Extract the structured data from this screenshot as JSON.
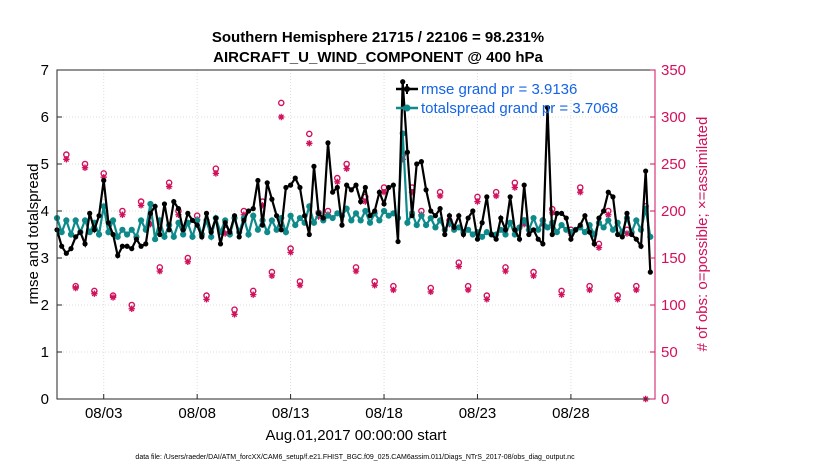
{
  "chart_data": {
    "type": "line",
    "title": "Southern Hemisphere 21715 / 22106 = 98.231%",
    "subtitle": "AIRCRAFT_U_WIND_COMPONENT @ 400 hPa",
    "xlabel": "Aug.01,2017 00:00:00 start",
    "ylabel": "rmse and totalspread",
    "ylabel_right": "# of obs: o=possible; ×=assimilated",
    "footnote": "data file: /Users/raeder/DAI/ATM_forcXX/CAM6_setup/f.e21.FHIST_BGC.f09_025.CAM6assim.011/Diags_NTrS_2017-08/obs_diag_output.nc",
    "xlim": [
      0.5,
      32.5
    ],
    "ylim": [
      0,
      7
    ],
    "ylim_right": [
      0,
      350
    ],
    "xticks": [
      3,
      8,
      13,
      18,
      23,
      28
    ],
    "xtick_labels": [
      "08/03",
      "08/08",
      "08/13",
      "08/18",
      "08/23",
      "08/28"
    ],
    "yticks": [
      0,
      1,
      2,
      3,
      4,
      5,
      6,
      7
    ],
    "ytick_labels": [
      "0",
      "1",
      "2",
      "3",
      "4",
      "5",
      "6",
      "7"
    ],
    "yticks_right": [
      0,
      50,
      100,
      150,
      200,
      250,
      300,
      350
    ],
    "ytick_labels_right": [
      "0",
      "50",
      "100",
      "150",
      "200",
      "250",
      "300",
      "350"
    ],
    "legend_position": "top-right",
    "series": [
      {
        "name": "rmse grand pr = 3.9136",
        "color": "#000000",
        "x": [
          0.5,
          0.75,
          1.0,
          1.25,
          1.5,
          1.75,
          2.0,
          2.25,
          2.5,
          2.75,
          3.0,
          3.25,
          3.5,
          3.75,
          4.0,
          4.25,
          4.5,
          4.75,
          5.0,
          5.25,
          5.5,
          5.75,
          6.0,
          6.25,
          6.5,
          6.75,
          7.0,
          7.25,
          7.5,
          7.75,
          8.0,
          8.25,
          8.5,
          8.75,
          9.0,
          9.25,
          9.5,
          9.75,
          10.0,
          10.25,
          10.5,
          10.75,
          11.0,
          11.25,
          11.5,
          11.75,
          12.0,
          12.25,
          12.5,
          12.75,
          13.0,
          13.25,
          13.5,
          13.75,
          14.0,
          14.25,
          14.5,
          14.75,
          15.0,
          15.25,
          15.5,
          15.75,
          16.0,
          16.25,
          16.5,
          16.75,
          17.0,
          17.25,
          17.5,
          17.75,
          18.0,
          18.25,
          18.5,
          18.75,
          19.0,
          19.25,
          19.5,
          19.75,
          20.0,
          20.25,
          20.5,
          20.75,
          21.0,
          21.25,
          21.5,
          21.75,
          22.0,
          22.25,
          22.5,
          22.75,
          23.0,
          23.25,
          23.5,
          23.75,
          24.0,
          24.25,
          24.5,
          24.75,
          25.0,
          25.25,
          25.5,
          25.75,
          26.0,
          26.25,
          26.5,
          26.75,
          27.0,
          27.25,
          27.5,
          27.75,
          28.0,
          28.25,
          28.5,
          28.75,
          29.0,
          29.25,
          29.5,
          29.75,
          30.0,
          30.25,
          30.5,
          30.75,
          31.0,
          31.25,
          31.5,
          31.75,
          32.0,
          32.25
        ],
        "values": [
          3.6,
          3.25,
          3.1,
          3.2,
          3.45,
          3.55,
          3.3,
          3.95,
          3.6,
          3.9,
          4.65,
          3.75,
          3.5,
          3.05,
          3.25,
          3.25,
          3.2,
          3.4,
          3.25,
          3.3,
          3.95,
          4.1,
          3.5,
          4.15,
          3.6,
          4.2,
          4.05,
          3.6,
          3.95,
          3.8,
          3.7,
          3.45,
          3.95,
          3.55,
          3.85,
          3.3,
          3.75,
          3.55,
          3.9,
          3.45,
          3.8,
          4.0,
          4.05,
          4.65,
          3.7,
          4.6,
          4.25,
          3.9,
          3.6,
          4.5,
          4.55,
          4.7,
          4.5,
          3.9,
          3.5,
          4.95,
          3.95,
          3.85,
          5.45,
          4.4,
          4.5,
          3.7,
          4.55,
          4.45,
          4.55,
          4.2,
          4.5,
          3.9,
          4.0,
          4.4,
          4.15,
          4.5,
          4.55,
          3.35,
          6.75,
          5.25,
          3.9,
          5.0,
          5.05,
          4.45,
          4.0,
          3.9,
          4.05,
          3.5,
          3.9,
          3.65,
          3.9,
          3.5,
          3.85,
          4.0,
          3.4,
          3.75,
          4.3,
          3.5,
          3.4,
          3.85,
          3.6,
          4.3,
          3.6,
          3.4,
          4.55,
          3.5,
          3.6,
          3.4,
          3.3,
          6.2,
          3.5,
          3.95,
          3.95,
          3.85,
          3.4,
          3.6,
          3.7,
          3.9,
          3.55,
          3.3,
          3.85,
          4.0,
          4.4,
          4.3,
          3.5,
          3.45,
          3.95,
          3.5,
          3.4,
          3.25,
          4.85,
          2.7
        ]
      },
      {
        "name": "totalspread grand pr = 3.7068",
        "color": "#0f8a8a",
        "x": [
          0.5,
          0.75,
          1.0,
          1.25,
          1.5,
          1.75,
          2.0,
          2.25,
          2.5,
          2.75,
          3.0,
          3.25,
          3.5,
          3.75,
          4.0,
          4.25,
          4.5,
          4.75,
          5.0,
          5.25,
          5.5,
          5.75,
          6.0,
          6.25,
          6.5,
          6.75,
          7.0,
          7.25,
          7.5,
          7.75,
          8.0,
          8.25,
          8.5,
          8.75,
          9.0,
          9.25,
          9.5,
          9.75,
          10.0,
          10.25,
          10.5,
          10.75,
          11.0,
          11.25,
          11.5,
          11.75,
          12.0,
          12.25,
          12.5,
          12.75,
          13.0,
          13.25,
          13.5,
          13.75,
          14.0,
          14.25,
          14.5,
          14.75,
          15.0,
          15.25,
          15.5,
          15.75,
          16.0,
          16.25,
          16.5,
          16.75,
          17.0,
          17.25,
          17.5,
          17.75,
          18.0,
          18.25,
          18.5,
          18.75,
          19.0,
          19.25,
          19.5,
          19.75,
          20.0,
          20.25,
          20.5,
          20.75,
          21.0,
          21.25,
          21.5,
          21.75,
          22.0,
          22.25,
          22.5,
          22.75,
          23.0,
          23.25,
          23.5,
          23.75,
          24.0,
          24.25,
          24.5,
          24.75,
          25.0,
          25.25,
          25.5,
          25.75,
          26.0,
          26.25,
          26.5,
          26.75,
          27.0,
          27.25,
          27.5,
          27.75,
          28.0,
          28.25,
          28.5,
          28.75,
          29.0,
          29.25,
          29.5,
          29.75,
          30.0,
          30.25,
          30.5,
          30.75,
          31.0,
          31.25,
          31.5,
          31.75,
          32.0,
          32.25
        ],
        "values": [
          3.85,
          3.55,
          3.8,
          3.5,
          3.8,
          3.55,
          3.8,
          3.55,
          3.75,
          3.5,
          4.1,
          3.55,
          3.8,
          3.45,
          3.6,
          3.5,
          3.6,
          3.45,
          3.8,
          3.6,
          4.15,
          3.4,
          3.8,
          3.45,
          3.7,
          3.45,
          3.75,
          3.5,
          3.75,
          3.45,
          3.8,
          3.5,
          3.8,
          3.45,
          3.85,
          3.55,
          3.8,
          3.5,
          3.85,
          3.55,
          3.85,
          3.5,
          3.9,
          3.6,
          3.8,
          3.55,
          3.8,
          3.6,
          3.85,
          3.55,
          3.9,
          3.7,
          3.85,
          3.75,
          4.1,
          3.75,
          3.95,
          3.8,
          3.9,
          3.85,
          3.95,
          3.9,
          4.05,
          3.8,
          3.95,
          3.8,
          4.0,
          3.75,
          3.95,
          3.8,
          4.0,
          3.9,
          3.95,
          3.85,
          5.65,
          3.75,
          3.95,
          3.7,
          3.9,
          3.7,
          3.85,
          3.65,
          3.8,
          3.6,
          3.75,
          3.6,
          3.65,
          3.55,
          3.6,
          3.5,
          3.55,
          3.45,
          3.55,
          3.5,
          3.5,
          3.6,
          3.5,
          3.75,
          3.5,
          3.65,
          3.8,
          3.6,
          3.85,
          3.6,
          3.8,
          3.65,
          3.75,
          3.55,
          3.7,
          3.6,
          3.55,
          3.6,
          3.65,
          3.55,
          3.7,
          3.5,
          3.75,
          3.65,
          3.8,
          3.6,
          3.75,
          3.55,
          3.85,
          3.55,
          3.8,
          3.6,
          4.05,
          3.45
        ]
      },
      {
        "name": "# obs possible",
        "color": "#d1115c",
        "marker": "o",
        "x": [
          1,
          1.5,
          2,
          2.5,
          3,
          3.5,
          4,
          4.5,
          5,
          5.5,
          6,
          6.5,
          7,
          7.5,
          8,
          8.5,
          9,
          9.5,
          10,
          10.5,
          11,
          11.5,
          12,
          12.5,
          13,
          13.5,
          14,
          14.5,
          15,
          15.5,
          16,
          16.5,
          17,
          17.5,
          18,
          18.5,
          19,
          19.5,
          20,
          20.5,
          21,
          21.5,
          22,
          22.5,
          23,
          23.5,
          24,
          24.5,
          25,
          25.5,
          26,
          26.5,
          27,
          27.5,
          28,
          28.5,
          29,
          29.5,
          30,
          30.5,
          31,
          31.5,
          32
        ],
        "values": [
          260,
          120,
          250,
          115,
          240,
          110,
          200,
          100,
          210,
          190,
          140,
          230,
          200,
          150,
          195,
          110,
          245,
          180,
          95,
          200,
          115,
          210,
          135,
          315,
          160,
          125,
          282,
          198,
          200,
          235,
          250,
          140,
          215,
          125,
          225,
          120,
          260,
          225,
          200,
          118,
          220,
          190,
          145,
          120,
          215,
          110,
          220,
          140,
          230,
          190,
          135,
          190,
          202,
          115,
          180,
          225,
          120,
          165,
          200,
          110,
          180,
          120,
          205
        ]
      },
      {
        "name": "# obs assimilated",
        "color": "#d1115c",
        "marker": "x",
        "x": [
          1,
          1.5,
          2,
          2.5,
          3,
          3.5,
          4,
          4.5,
          5,
          5.5,
          6,
          6.5,
          7,
          7.5,
          8,
          8.5,
          9,
          9.5,
          10,
          10.5,
          11,
          11.5,
          12,
          12.5,
          13,
          13.5,
          14,
          14.5,
          15,
          15.5,
          16,
          16.5,
          17,
          17.5,
          18,
          18.5,
          19,
          19.5,
          20,
          20.5,
          21,
          21.5,
          22,
          22.5,
          23,
          23.5,
          24,
          24.5,
          25,
          25.5,
          26,
          26.5,
          27,
          27.5,
          28,
          28.5,
          29,
          29.5,
          30,
          30.5,
          31,
          31.5,
          32
        ],
        "values": [
          255,
          118,
          246,
          112,
          236,
          108,
          196,
          96,
          206,
          186,
          136,
          226,
          196,
          146,
          191,
          106,
          240,
          176,
          90,
          196,
          111,
          206,
          131,
          300,
          156,
          121,
          272,
          194,
          196,
          231,
          245,
          136,
          210,
          121,
          220,
          116,
          255,
          220,
          196,
          114,
          216,
          186,
          141,
          116,
          210,
          106,
          216,
          136,
          225,
          186,
          131,
          186,
          198,
          111,
          176,
          220,
          116,
          161,
          196,
          106,
          176,
          116,
          0
        ]
      }
    ]
  }
}
